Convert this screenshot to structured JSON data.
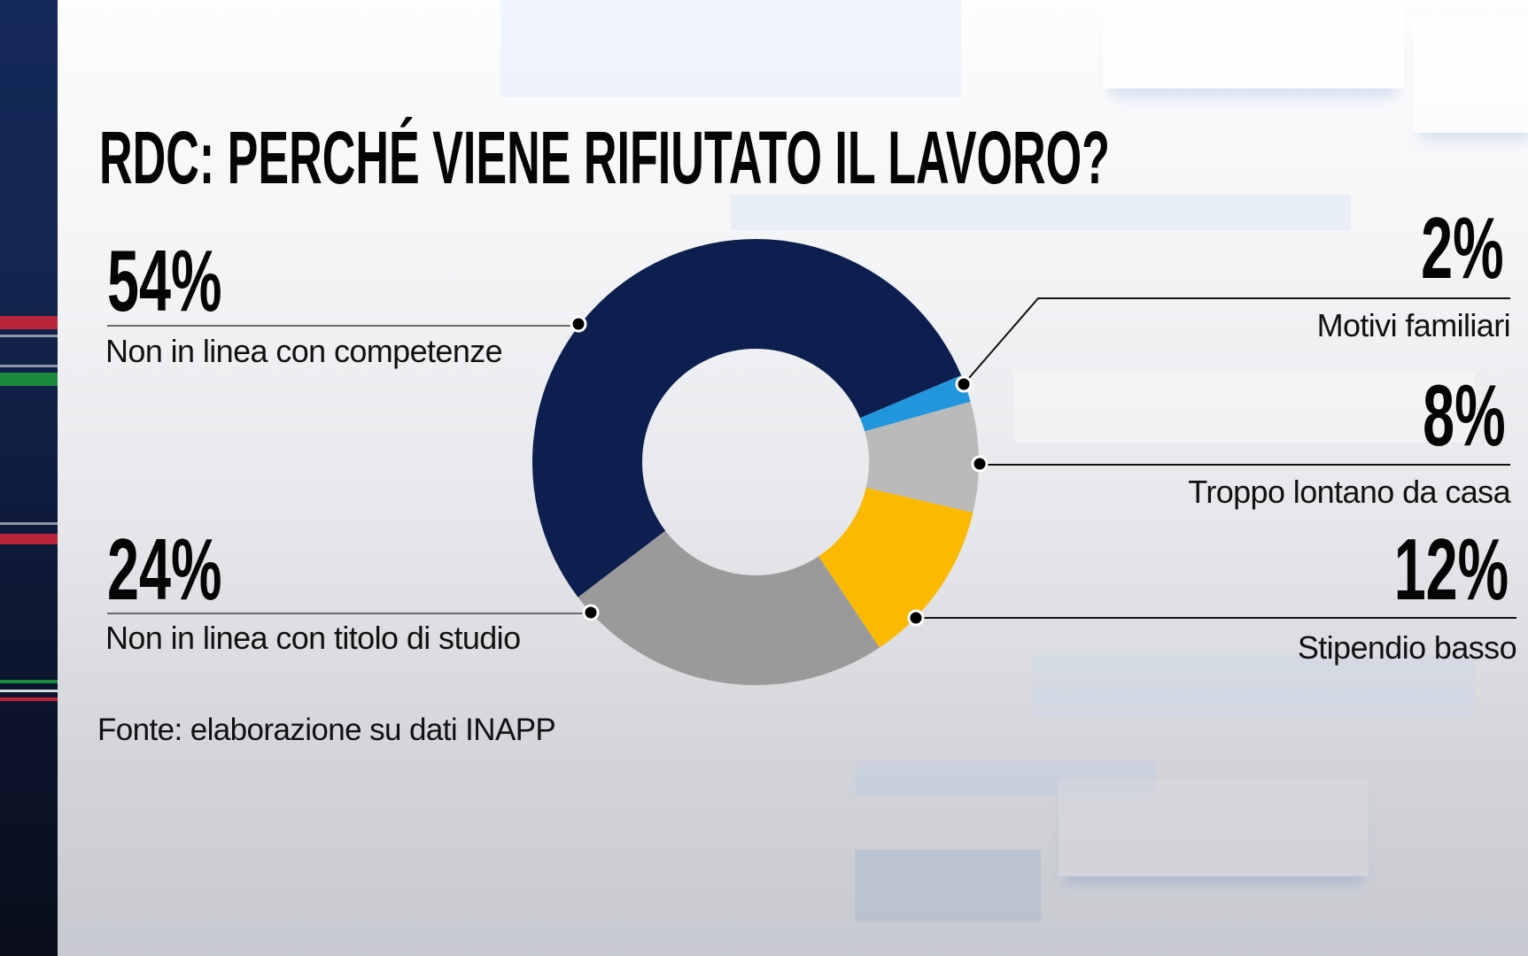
{
  "title": "RDC: PERCHÉ VIENE RIFIUTATO IL LAVORO?",
  "source": "Fonte: elaborazione su dati  INAPP",
  "colors": {
    "navy": "#0d1f4f",
    "blue": "#2196dc",
    "light_gray": "#bababa",
    "yellow": "#fbb900",
    "mid_gray": "#9a9a9a",
    "text": "#050505",
    "side_stripe": "#13254f"
  },
  "labels": {
    "competenze": {
      "pct": "54%",
      "text": "Non in linea con competenze"
    },
    "titolo_studio": {
      "pct": "24%",
      "text": "Non in linea con titolo di studio"
    },
    "familiari": {
      "pct": "2%",
      "text": "Motivi familiari"
    },
    "lontano": {
      "pct": "8%",
      "text": "Troppo lontano da casa"
    },
    "stipendio": {
      "pct": "12%",
      "text": "Stipendio basso"
    }
  },
  "chart_data": {
    "type": "pie",
    "variant": "donut",
    "title": "RDC: PERCHÉ VIENE RIFIUTATO IL LAVORO?",
    "categories": [
      "Non in linea con competenze",
      "Motivi familiari",
      "Troppo lontano da casa",
      "Stipendio basso",
      "Non in linea con titolo di studio"
    ],
    "values": [
      54,
      2,
      8,
      12,
      24
    ],
    "unit": "%",
    "colors": [
      "#0d1f4f",
      "#2196dc",
      "#bababa",
      "#fbb900",
      "#9a9a9a"
    ],
    "start_angle_deg": 142.7,
    "direction": "clockwise",
    "source": "Fonte: elaborazione su dati  INAPP",
    "legend": "callout labels"
  }
}
